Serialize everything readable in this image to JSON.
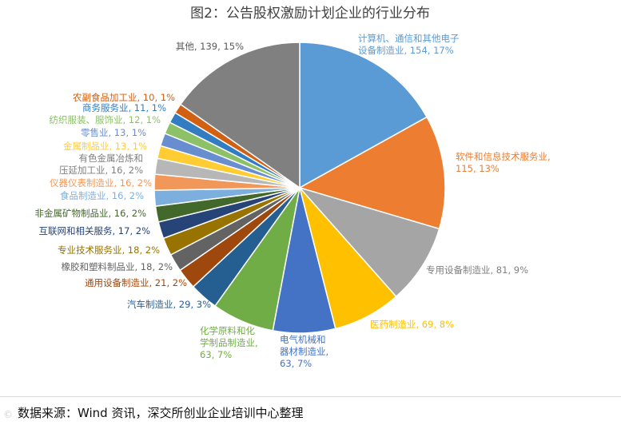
{
  "chart_data": {
    "type": "pie",
    "title": "图2：公告股权激励计划企业的行业分布",
    "slices": [
      {
        "label": "计算机、通信和其他电子设备制造业",
        "label_lines": [
          "计算机、通信和其他电子",
          "设备制造业, 154, 17%"
        ],
        "value": 154,
        "percent": "17%",
        "color": "#5B9BD5"
      },
      {
        "label": "软件和信息技术服务业",
        "label_lines": [
          "软件和信息技术服务业,",
          "115, 13%"
        ],
        "value": 115,
        "percent": "13%",
        "color": "#ED7D31"
      },
      {
        "label": "专用设备制造业",
        "label_lines": [
          "专用设备制造业, 81, 9%"
        ],
        "value": 81,
        "percent": "9%",
        "color": "#A5A5A5"
      },
      {
        "label": "医药制造业",
        "label_lines": [
          "医药制造业, 69, 8%"
        ],
        "value": 69,
        "percent": "8%",
        "color": "#FFC000"
      },
      {
        "label": "电气机械和器材制造业",
        "label_lines": [
          "电气机械和",
          "器材制造业,",
          "63, 7%"
        ],
        "value": 63,
        "percent": "7%",
        "color": "#4472C4"
      },
      {
        "label": "化学原料和化学制品制造业",
        "label_lines": [
          "化学原料和化",
          "学制品制造业,",
          "63, 7%"
        ],
        "value": 63,
        "percent": "7%",
        "color": "#70AD47"
      },
      {
        "label": "汽车制造业",
        "label_lines": [
          "汽车制造业, 29, 3%"
        ],
        "value": 29,
        "percent": "3%",
        "color": "#255E91"
      },
      {
        "label": "通用设备制造业",
        "label_lines": [
          "通用设备制造业, 21, 2%"
        ],
        "value": 21,
        "percent": "2%",
        "color": "#9E480E"
      },
      {
        "label": "橡胶和塑料制品业",
        "label_lines": [
          "橡胶和塑料制品业, 18, 2%"
        ],
        "value": 18,
        "percent": "2%",
        "color": "#636363"
      },
      {
        "label": "专业技术服务业",
        "label_lines": [
          "专业技术服务业, 18, 2%"
        ],
        "value": 18,
        "percent": "2%",
        "color": "#997300"
      },
      {
        "label": "互联网和相关服务",
        "label_lines": [
          "互联网和相关服务, 17, 2%"
        ],
        "value": 17,
        "percent": "2%",
        "color": "#264478"
      },
      {
        "label": "非金属矿物制品业",
        "label_lines": [
          "非金属矿物制品业, 16, 2%"
        ],
        "value": 16,
        "percent": "2%",
        "color": "#43682B"
      },
      {
        "label": "食品制造业",
        "label_lines": [
          "食品制造业, 16, 2%"
        ],
        "value": 16,
        "percent": "2%",
        "color": "#7CAFDD"
      },
      {
        "label": "仪器仪表制造业",
        "label_lines": [
          "仪器仪表制造业, 16, 2%"
        ],
        "value": 16,
        "percent": "2%",
        "color": "#F1975A"
      },
      {
        "label": "有色金属冶炼和压延加工业",
        "label_lines": [
          "有色金属冶炼和",
          "压延加工业, 16, 2%"
        ],
        "value": 16,
        "percent": "2%",
        "color": "#B7B7B7"
      },
      {
        "label": "金属制品业",
        "label_lines": [
          "金属制品业, 13, 1%"
        ],
        "value": 13,
        "percent": "1%",
        "color": "#FFCD33"
      },
      {
        "label": "零售业",
        "label_lines": [
          "零售业, 13, 1%"
        ],
        "value": 13,
        "percent": "1%",
        "color": "#698ED0"
      },
      {
        "label": "纺织服装、服饰业",
        "label_lines": [
          "纺织服装、服饰业, 12, 1%"
        ],
        "value": 12,
        "percent": "1%",
        "color": "#8CC168"
      },
      {
        "label": "商务服务业",
        "label_lines": [
          "商务服务业, 11, 1%"
        ],
        "value": 11,
        "percent": "1%",
        "color": "#327DC2"
      },
      {
        "label": "农副食品加工业",
        "label_lines": [
          "农副食品加工业, 10, 1%"
        ],
        "value": 10,
        "percent": "1%",
        "color": "#D26012"
      },
      {
        "label": "其他",
        "label_lines": [
          "其他, 139, 15%"
        ],
        "value": 139,
        "percent": "15%",
        "color": "#808080"
      }
    ]
  },
  "footer": {
    "source": "数据来源：Wind 资讯，深交所创业企业培训中心整理",
    "watermark": "©"
  }
}
